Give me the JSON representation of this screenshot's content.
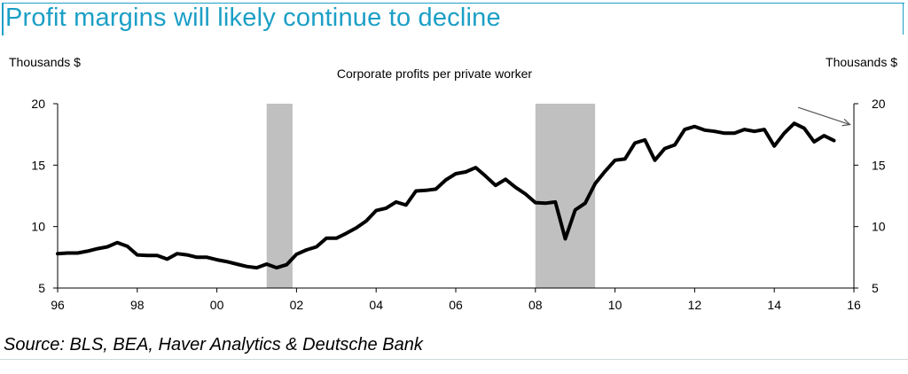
{
  "title": "Profit margins will likely continue to decline",
  "source": "Source: BLS, BEA, Haver Analytics & Deutsche Bank",
  "chart_data": {
    "type": "line",
    "title": "Corporate profits per private worker",
    "ylabel_left": "Thousands $",
    "ylabel_right": "Thousands $",
    "xlim": [
      1996,
      2016
    ],
    "ylim": [
      5,
      20
    ],
    "x_ticks": [
      1996,
      1998,
      2000,
      2002,
      2004,
      2006,
      2008,
      2010,
      2012,
      2014,
      2016
    ],
    "x_tick_labels": [
      "96",
      "98",
      "00",
      "02",
      "04",
      "06",
      "08",
      "10",
      "12",
      "14",
      "16"
    ],
    "y_ticks": [
      5,
      10,
      15,
      20
    ],
    "recessions": [
      [
        2001.25,
        2001.9
      ],
      [
        2008.0,
        2009.5
      ]
    ],
    "trend_arrow": {
      "from": [
        2014.6,
        19.7
      ],
      "to": [
        2015.9,
        18.3
      ]
    },
    "line_color": "#000000",
    "recession_color": "#c0c0c0",
    "series": [
      {
        "values": [
          [
            1996.0,
            7.8
          ],
          [
            1996.25,
            7.85
          ],
          [
            1996.5,
            7.85
          ],
          [
            1996.75,
            8.0
          ],
          [
            1997.0,
            8.2
          ],
          [
            1997.25,
            8.35
          ],
          [
            1997.5,
            8.7
          ],
          [
            1997.75,
            8.4
          ],
          [
            1998.0,
            7.7
          ],
          [
            1998.25,
            7.65
          ],
          [
            1998.5,
            7.65
          ],
          [
            1998.75,
            7.35
          ],
          [
            1999.0,
            7.8
          ],
          [
            1999.25,
            7.7
          ],
          [
            1999.5,
            7.5
          ],
          [
            1999.75,
            7.5
          ],
          [
            2000.0,
            7.3
          ],
          [
            2000.25,
            7.15
          ],
          [
            2000.5,
            6.95
          ],
          [
            2000.75,
            6.75
          ],
          [
            2001.0,
            6.65
          ],
          [
            2001.25,
            6.95
          ],
          [
            2001.5,
            6.65
          ],
          [
            2001.75,
            6.9
          ],
          [
            2002.0,
            7.75
          ],
          [
            2002.25,
            8.1
          ],
          [
            2002.5,
            8.35
          ],
          [
            2002.75,
            9.05
          ],
          [
            2003.0,
            9.05
          ],
          [
            2003.25,
            9.45
          ],
          [
            2003.5,
            9.9
          ],
          [
            2003.75,
            10.45
          ],
          [
            2004.0,
            11.3
          ],
          [
            2004.25,
            11.5
          ],
          [
            2004.5,
            12.0
          ],
          [
            2004.75,
            11.75
          ],
          [
            2005.0,
            12.9
          ],
          [
            2005.25,
            12.95
          ],
          [
            2005.5,
            13.05
          ],
          [
            2005.75,
            13.8
          ],
          [
            2006.0,
            14.3
          ],
          [
            2006.25,
            14.45
          ],
          [
            2006.5,
            14.8
          ],
          [
            2006.75,
            14.1
          ],
          [
            2007.0,
            13.35
          ],
          [
            2007.25,
            13.85
          ],
          [
            2007.5,
            13.2
          ],
          [
            2007.75,
            12.65
          ],
          [
            2008.0,
            11.95
          ],
          [
            2008.25,
            11.9
          ],
          [
            2008.5,
            12.0
          ],
          [
            2008.75,
            9.0
          ],
          [
            2009.0,
            11.35
          ],
          [
            2009.25,
            11.9
          ],
          [
            2009.5,
            13.5
          ],
          [
            2009.75,
            14.5
          ],
          [
            2010.0,
            15.4
          ],
          [
            2010.25,
            15.5
          ],
          [
            2010.5,
            16.8
          ],
          [
            2010.75,
            17.05
          ],
          [
            2011.0,
            15.4
          ],
          [
            2011.25,
            16.35
          ],
          [
            2011.5,
            16.65
          ],
          [
            2011.75,
            17.9
          ],
          [
            2012.0,
            18.15
          ],
          [
            2012.25,
            17.85
          ],
          [
            2012.5,
            17.75
          ],
          [
            2012.75,
            17.6
          ],
          [
            2013.0,
            17.6
          ],
          [
            2013.25,
            17.9
          ],
          [
            2013.5,
            17.75
          ],
          [
            2013.75,
            17.9
          ],
          [
            2014.0,
            16.55
          ],
          [
            2014.25,
            17.6
          ],
          [
            2014.5,
            18.4
          ],
          [
            2014.75,
            18.0
          ],
          [
            2015.0,
            16.9
          ],
          [
            2015.25,
            17.4
          ],
          [
            2015.5,
            17.0
          ]
        ]
      }
    ]
  }
}
